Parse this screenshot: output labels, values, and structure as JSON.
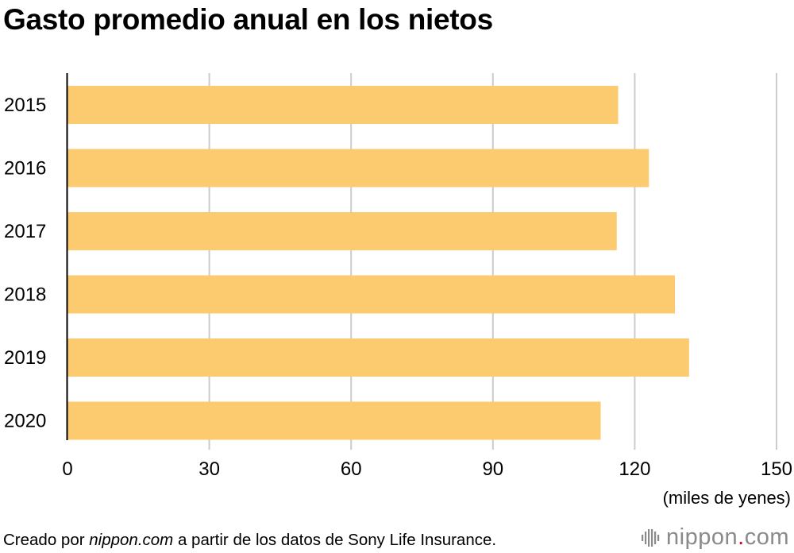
{
  "chart_data": {
    "type": "bar",
    "orientation": "horizontal",
    "title": "Gasto promedio anual en los nietos",
    "categories": [
      "2015",
      "2016",
      "2017",
      "2018",
      "2019",
      "2020"
    ],
    "values": [
      116.5,
      123,
      116.2,
      128.5,
      131.5,
      112.8
    ],
    "xlim": [
      0,
      150
    ],
    "xticks": [
      "0",
      "30",
      "60",
      "90",
      "120",
      "150"
    ],
    "tick_values": [
      0,
      30,
      60,
      90,
      120,
      150
    ],
    "xlabel": "(miles de yenes)",
    "grid": true,
    "legend": "none"
  },
  "colors": {
    "bar": "#fcca6f",
    "grid": "#cccccc",
    "axis": "#000000",
    "logo": "#8a8a8a",
    "logo_dot": "#d6001c"
  },
  "footer": {
    "prefix": "Creado por ",
    "source_site": "nippon.com",
    "suffix": " a partir de los datos de Sony Life Insurance."
  },
  "logo": {
    "name_part1": "nippon",
    "dot": ".",
    "name_part2": "com",
    "icon": "nippon-bars-icon"
  }
}
